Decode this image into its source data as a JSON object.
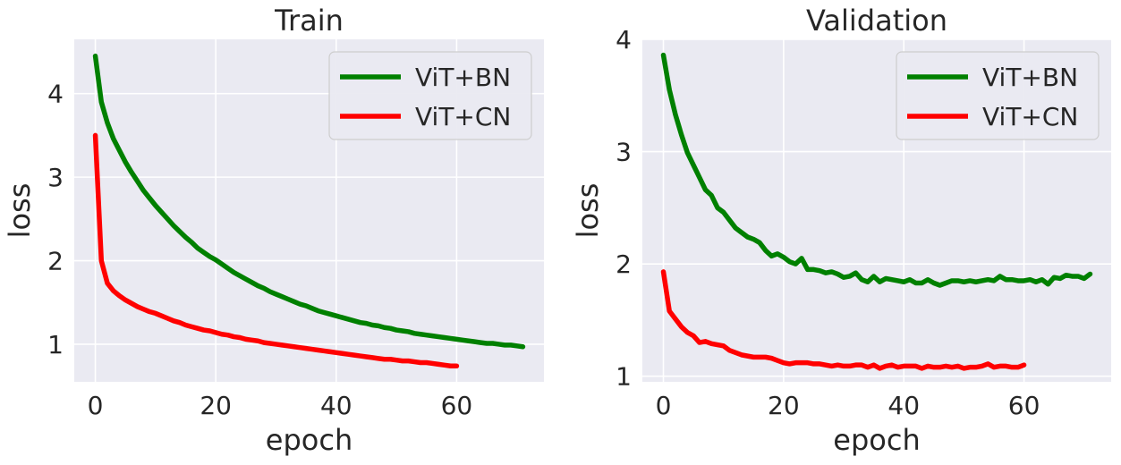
{
  "chart_data": [
    {
      "type": "line",
      "title": "Train",
      "xlabel": "epoch",
      "ylabel": "loss",
      "xlim": [
        -3.5,
        74.5
      ],
      "ylim": [
        0.55,
        4.65
      ],
      "xticks": [
        0,
        20,
        40,
        60
      ],
      "yticks": [
        1,
        2,
        3,
        4
      ],
      "grid": true,
      "legend": "top-right",
      "series": [
        {
          "name": "ViT+BN",
          "color": "#008000",
          "x": [
            0,
            1,
            2,
            3,
            4,
            5,
            6,
            7,
            8,
            9,
            10,
            11,
            12,
            13,
            14,
            15,
            16,
            17,
            18,
            19,
            20,
            21,
            22,
            23,
            24,
            25,
            26,
            27,
            28,
            29,
            30,
            31,
            32,
            33,
            34,
            35,
            36,
            37,
            38,
            39,
            40,
            41,
            42,
            43,
            44,
            45,
            46,
            47,
            48,
            49,
            50,
            51,
            52,
            53,
            54,
            55,
            56,
            57,
            58,
            59,
            60,
            61,
            62,
            63,
            64,
            65,
            66,
            67,
            68,
            69,
            70,
            71
          ],
          "y": [
            4.45,
            3.9,
            3.65,
            3.46,
            3.32,
            3.18,
            3.06,
            2.95,
            2.84,
            2.75,
            2.66,
            2.58,
            2.5,
            2.42,
            2.35,
            2.28,
            2.22,
            2.15,
            2.1,
            2.05,
            2.01,
            1.96,
            1.91,
            1.86,
            1.82,
            1.78,
            1.74,
            1.7,
            1.67,
            1.63,
            1.6,
            1.57,
            1.54,
            1.51,
            1.48,
            1.46,
            1.43,
            1.4,
            1.38,
            1.36,
            1.34,
            1.32,
            1.3,
            1.28,
            1.26,
            1.25,
            1.23,
            1.22,
            1.2,
            1.19,
            1.17,
            1.16,
            1.15,
            1.13,
            1.12,
            1.11,
            1.1,
            1.09,
            1.08,
            1.07,
            1.06,
            1.05,
            1.04,
            1.03,
            1.02,
            1.01,
            1.01,
            1.0,
            0.99,
            0.99,
            0.98,
            0.97
          ]
        },
        {
          "name": "ViT+CN",
          "color": "#ff0000",
          "x": [
            0,
            1,
            2,
            3,
            4,
            5,
            6,
            7,
            8,
            9,
            10,
            11,
            12,
            13,
            14,
            15,
            16,
            17,
            18,
            19,
            20,
            21,
            22,
            23,
            24,
            25,
            26,
            27,
            28,
            29,
            30,
            31,
            32,
            33,
            34,
            35,
            36,
            37,
            38,
            39,
            40,
            41,
            42,
            43,
            44,
            45,
            46,
            47,
            48,
            49,
            50,
            51,
            52,
            53,
            54,
            55,
            56,
            57,
            58,
            59,
            60
          ],
          "y": [
            3.5,
            2.0,
            1.73,
            1.64,
            1.58,
            1.53,
            1.49,
            1.45,
            1.42,
            1.39,
            1.37,
            1.34,
            1.31,
            1.28,
            1.26,
            1.23,
            1.21,
            1.19,
            1.17,
            1.16,
            1.14,
            1.12,
            1.11,
            1.09,
            1.08,
            1.06,
            1.05,
            1.04,
            1.02,
            1.01,
            1.0,
            0.99,
            0.98,
            0.97,
            0.96,
            0.95,
            0.94,
            0.93,
            0.92,
            0.91,
            0.9,
            0.89,
            0.88,
            0.87,
            0.86,
            0.85,
            0.84,
            0.83,
            0.82,
            0.82,
            0.81,
            0.8,
            0.8,
            0.79,
            0.78,
            0.78,
            0.77,
            0.76,
            0.75,
            0.74,
            0.74
          ]
        }
      ]
    },
    {
      "type": "line",
      "title": "Validation",
      "xlabel": "epoch",
      "ylabel": "loss",
      "xlim": [
        -3.5,
        74.5
      ],
      "ylim": [
        0.95,
        4.0
      ],
      "xticks": [
        0,
        20,
        40,
        60
      ],
      "yticks": [
        1,
        2,
        3,
        4
      ],
      "grid": true,
      "legend": "top-right",
      "series": [
        {
          "name": "ViT+BN",
          "color": "#008000",
          "x": [
            0,
            1,
            2,
            3,
            4,
            5,
            6,
            7,
            8,
            9,
            10,
            11,
            12,
            13,
            14,
            15,
            16,
            17,
            18,
            19,
            20,
            21,
            22,
            23,
            24,
            25,
            26,
            27,
            28,
            29,
            30,
            31,
            32,
            33,
            34,
            35,
            36,
            37,
            38,
            39,
            40,
            41,
            42,
            43,
            44,
            45,
            46,
            47,
            48,
            49,
            50,
            51,
            52,
            53,
            54,
            55,
            56,
            57,
            58,
            59,
            60,
            61,
            62,
            63,
            64,
            65,
            66,
            67,
            68,
            69,
            70,
            71
          ],
          "y": [
            3.86,
            3.55,
            3.33,
            3.15,
            2.99,
            2.88,
            2.77,
            2.66,
            2.61,
            2.5,
            2.46,
            2.39,
            2.32,
            2.28,
            2.24,
            2.22,
            2.19,
            2.12,
            2.07,
            2.09,
            2.06,
            2.02,
            2.0,
            2.05,
            1.95,
            1.95,
            1.94,
            1.92,
            1.93,
            1.91,
            1.88,
            1.89,
            1.92,
            1.86,
            1.84,
            1.89,
            1.84,
            1.87,
            1.86,
            1.85,
            1.84,
            1.86,
            1.83,
            1.83,
            1.86,
            1.83,
            1.81,
            1.83,
            1.85,
            1.85,
            1.84,
            1.85,
            1.84,
            1.85,
            1.86,
            1.85,
            1.89,
            1.86,
            1.86,
            1.85,
            1.85,
            1.86,
            1.84,
            1.86,
            1.82,
            1.88,
            1.87,
            1.9,
            1.89,
            1.89,
            1.87,
            1.91
          ]
        },
        {
          "name": "ViT+CN",
          "color": "#ff0000",
          "x": [
            0,
            1,
            2,
            3,
            4,
            5,
            6,
            7,
            8,
            9,
            10,
            11,
            12,
            13,
            14,
            15,
            16,
            17,
            18,
            19,
            20,
            21,
            22,
            23,
            24,
            25,
            26,
            27,
            28,
            29,
            30,
            31,
            32,
            33,
            34,
            35,
            36,
            37,
            38,
            39,
            40,
            41,
            42,
            43,
            44,
            45,
            46,
            47,
            48,
            49,
            50,
            51,
            52,
            53,
            54,
            55,
            56,
            57,
            58,
            59,
            60
          ],
          "y": [
            1.93,
            1.58,
            1.51,
            1.44,
            1.39,
            1.36,
            1.3,
            1.31,
            1.29,
            1.28,
            1.27,
            1.23,
            1.21,
            1.19,
            1.18,
            1.17,
            1.17,
            1.17,
            1.16,
            1.14,
            1.12,
            1.11,
            1.12,
            1.12,
            1.12,
            1.11,
            1.11,
            1.1,
            1.09,
            1.1,
            1.09,
            1.09,
            1.1,
            1.1,
            1.08,
            1.1,
            1.07,
            1.09,
            1.1,
            1.08,
            1.09,
            1.09,
            1.09,
            1.07,
            1.09,
            1.08,
            1.08,
            1.09,
            1.08,
            1.09,
            1.07,
            1.08,
            1.08,
            1.09,
            1.11,
            1.08,
            1.09,
            1.09,
            1.08,
            1.08,
            1.1
          ]
        }
      ]
    }
  ]
}
